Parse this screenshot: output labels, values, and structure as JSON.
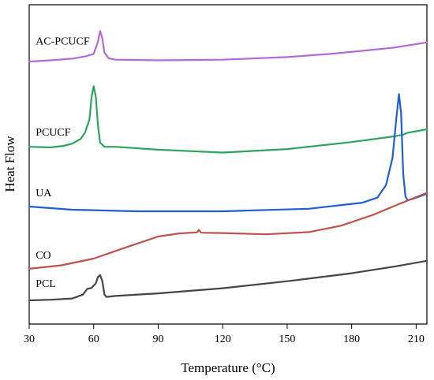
{
  "chart_data": {
    "type": "line",
    "title": "",
    "xlabel": "Temperature (°C)",
    "ylabel": "Heat Flow",
    "xlim": [
      30,
      215
    ],
    "ylim": [
      0,
      100
    ],
    "xticks": [
      30,
      60,
      90,
      120,
      150,
      180,
      210
    ],
    "yticks_shown": false,
    "grid": false,
    "legend": "none",
    "series": [
      {
        "name": "AC-PCUCF",
        "color": "#b36ad6",
        "label_at": [
          33,
          87.5
        ],
        "x": [
          30,
          40,
          50,
          56,
          60,
          62,
          63,
          64,
          65,
          67,
          70,
          90,
          120,
          150,
          170,
          190,
          200,
          215
        ],
        "y": [
          82.2,
          82.6,
          83.1,
          83.8,
          84.6,
          88.5,
          91.8,
          89.5,
          85.0,
          83.2,
          82.8,
          82.6,
          82.8,
          83.6,
          84.6,
          85.9,
          86.6,
          88.2
        ]
      },
      {
        "name": "PCUCF",
        "color": "#2ea35f",
        "label_at": [
          33,
          59.0
        ],
        "x": [
          30,
          40,
          46,
          50,
          54,
          56,
          58,
          59,
          60,
          61,
          62,
          63,
          65,
          70,
          90,
          120,
          150,
          180,
          200,
          204,
          206,
          215
        ],
        "y": [
          55.5,
          55.3,
          55.8,
          56.5,
          58.0,
          60.0,
          64.0,
          71.0,
          74.5,
          71.0,
          62.0,
          56.8,
          55.5,
          55.5,
          54.6,
          53.7,
          54.8,
          57.0,
          58.8,
          59.3,
          59.9,
          61.0
        ]
      },
      {
        "name": "UA",
        "color": "#1f5fd1",
        "label_at": [
          33,
          40.0
        ],
        "x": [
          30,
          50,
          80,
          120,
          160,
          185,
          192,
          196,
          199,
          201,
          202,
          203,
          204,
          205,
          206,
          208,
          215
        ],
        "y": [
          36.8,
          35.8,
          35.3,
          35.3,
          36.1,
          38.0,
          39.6,
          43.5,
          52.0,
          66.0,
          72.0,
          66.0,
          47.0,
          40.0,
          38.8,
          39.1,
          40.8
        ]
      },
      {
        "name": "CO",
        "color": "#c0504d",
        "label_at": [
          33,
          20.5
        ],
        "x": [
          30,
          45,
          60,
          75,
          90,
          100,
          108,
          109,
          110,
          120,
          140,
          160,
          175,
          190,
          200,
          215
        ],
        "y": [
          17.3,
          18.4,
          20.5,
          24.0,
          27.4,
          28.4,
          28.7,
          29.5,
          28.6,
          28.5,
          28.1,
          28.8,
          30.8,
          34.2,
          37.0,
          41.1
        ]
      },
      {
        "name": "PCL",
        "color": "#444444",
        "label_at": [
          33,
          11.6
        ],
        "x": [
          30,
          40,
          50,
          55,
          57,
          59,
          61,
          62,
          63,
          64,
          65,
          66,
          70,
          90,
          120,
          150,
          180,
          200,
          215
        ],
        "y": [
          7.4,
          7.6,
          8.0,
          9.2,
          11.0,
          11.3,
          12.8,
          14.8,
          15.3,
          13.5,
          9.2,
          8.5,
          8.8,
          9.6,
          11.2,
          13.4,
          15.9,
          18.0,
          19.8
        ]
      }
    ]
  }
}
